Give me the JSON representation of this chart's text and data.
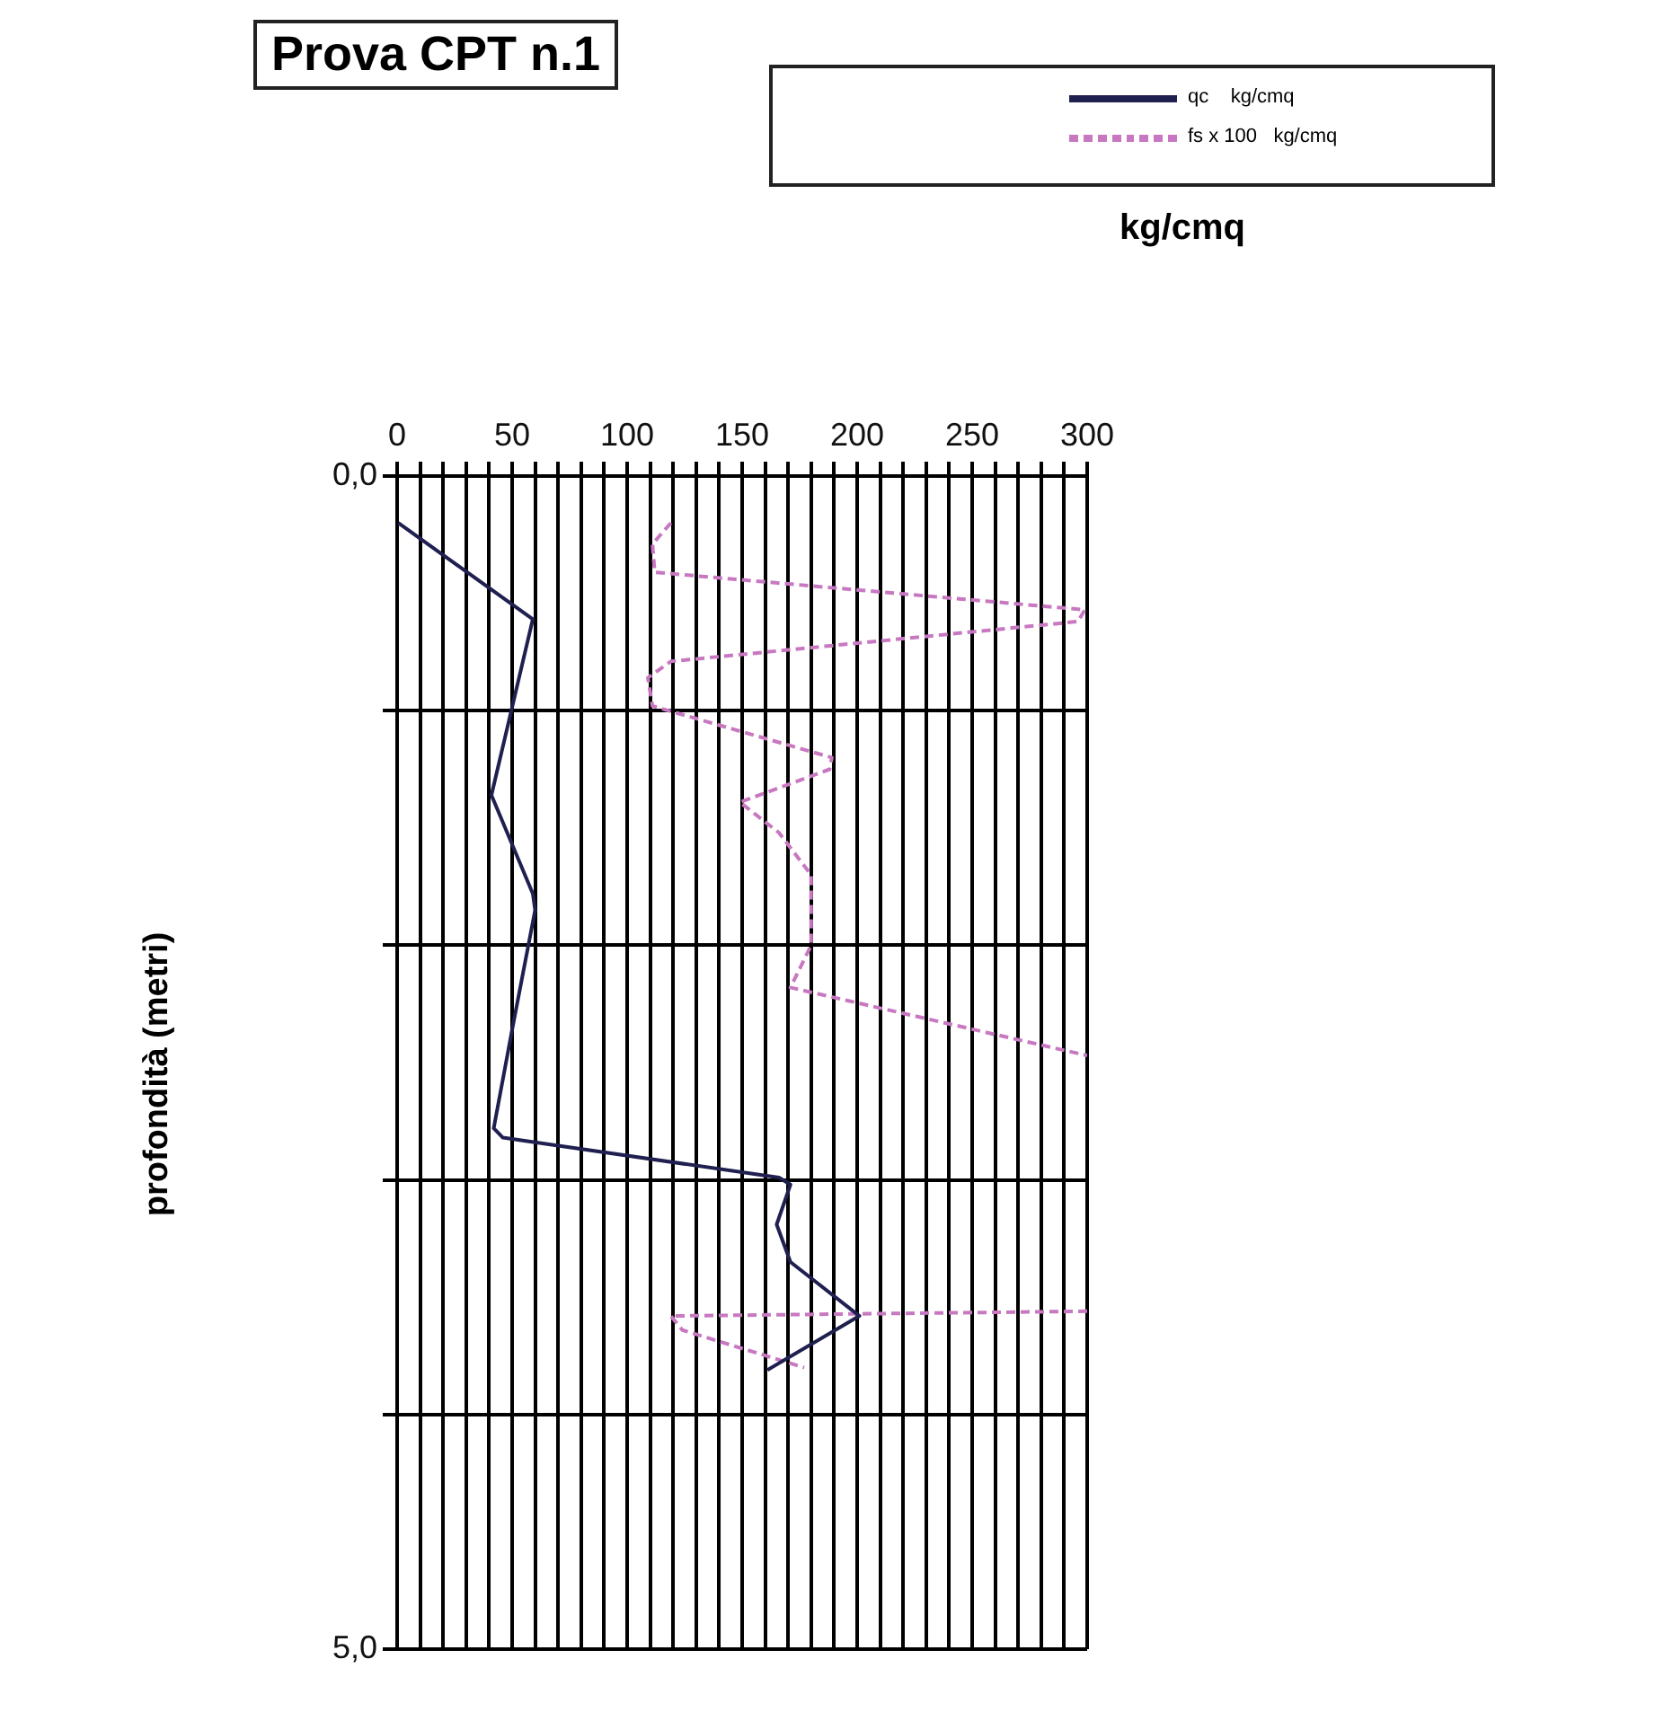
{
  "chart_data": {
    "type": "line",
    "title": "Prova CPT n.1",
    "xlabel": "kg/cmq",
    "ylabel": "profondità (metri)",
    "legend": "top right",
    "grid": true,
    "marker": "none",
    "xlim": [
      0,
      300
    ],
    "xticks": [
      0,
      {
        "value": 10,
        "label": null
      },
      {
        "value": 20,
        "label": null
      },
      {
        "value": 30,
        "label": null
      },
      {
        "value": 40,
        "label": null
      },
      50,
      {
        "value": 60,
        "label": null
      },
      {
        "value": 70,
        "label": null
      },
      {
        "value": 80,
        "label": null
      },
      {
        "value": 90,
        "label": null
      },
      100,
      {
        "value": 110,
        "label": null
      },
      {
        "value": 120,
        "label": null
      },
      {
        "value": 130,
        "label": null
      },
      {
        "value": 140,
        "label": null
      },
      150,
      {
        "value": 160,
        "label": null
      },
      {
        "value": 170,
        "label": null
      },
      {
        "value": 180,
        "label": null
      },
      {
        "value": 190,
        "label": null
      },
      200,
      {
        "value": 210,
        "label": null
      },
      {
        "value": 220,
        "label": null
      },
      {
        "value": 230,
        "label": null
      },
      {
        "value": 240,
        "label": null
      },
      250,
      {
        "value": 260,
        "label": null
      },
      {
        "value": 270,
        "label": null
      },
      {
        "value": 280,
        "label": null
      },
      {
        "value": 290,
        "label": null
      },
      300
    ],
    "ylim": [
      5,
      0
    ],
    "yticks": [
      {
        "value": 0,
        "label": "0,0"
      },
      {
        "value": 1,
        "label": null
      },
      {
        "value": 2,
        "label": null
      },
      {
        "value": 3,
        "label": null
      },
      {
        "value": 4,
        "label": null
      },
      {
        "value": 5,
        "label": "5,0"
      }
    ],
    "series": [
      {
        "name": "qc    kg/cmq",
        "color": "#202050",
        "line_style": "solid",
        "x": [
          0.5,
          59,
          41,
          59,
          60,
          50,
          42,
          46,
          166,
          171,
          165,
          171,
          201,
          161
        ],
        "values": [
          0.2,
          0.61,
          1.36,
          1.78,
          1.85,
          2.36,
          2.78,
          2.82,
          2.99,
          3.02,
          3.19,
          3.35,
          3.58,
          3.81
        ]
      },
      {
        "name": "fs x 100   kg/cmq",
        "color": "#c878c0",
        "line_style": "dashed",
        "x": [
          119,
          111,
          112,
          299,
          296,
          119,
          109,
          111,
          189,
          188,
          149,
          166,
          180,
          180,
          171,
          300,
          null,
          300,
          119,
          124,
          177
        ],
        "values": [
          0.2,
          0.29,
          0.41,
          0.57,
          0.62,
          0.79,
          0.86,
          0.98,
          1.2,
          1.25,
          1.39,
          1.52,
          1.7,
          2.0,
          2.18,
          2.47,
          null,
          3.56,
          3.58,
          3.64,
          3.8
        ]
      }
    ]
  }
}
